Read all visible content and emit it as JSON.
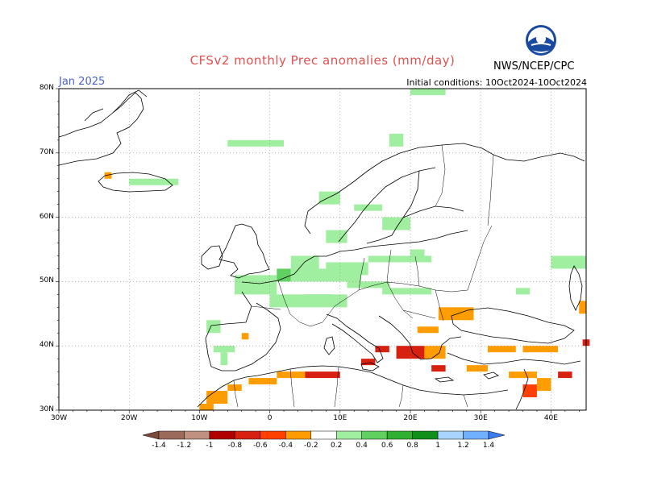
{
  "title": "CFSv2 monthly Prec anomalies (mm/day)",
  "month": "Jan 2025",
  "initial_conditions": "Initial conditions: 10Oct2024-10Oct2024",
  "agency": "NWS/NCEP/CPC",
  "logo_text": "NOAA",
  "latitude_labels": [
    "80N",
    "70N",
    "60N",
    "50N",
    "40N",
    "30N"
  ],
  "longitude_labels": [
    "30W",
    "20W",
    "10W",
    "0",
    "10E",
    "20E",
    "30E",
    "40E"
  ],
  "colorbar": {
    "labels": [
      "-1.4",
      "-1.2",
      "-1",
      "-0.8",
      "-0.6",
      "-0.4",
      "-0.2",
      "0.2",
      "0.4",
      "0.6",
      "0.8",
      "1",
      "1.2",
      "1.4"
    ],
    "colors": [
      "#7a4a3a",
      "#9c6a5a",
      "#c09080",
      "#b00000",
      "#d82010",
      "#ff4000",
      "#ff9d00",
      "#ffffff",
      "#a0eea0",
      "#60d060",
      "#30b030",
      "#10901a",
      "#a8d4ff",
      "#70b0ff",
      "#3c7cf0"
    ]
  },
  "chart_data": {
    "type": "heatmap",
    "projection": "lat-lon",
    "lon_range": [
      -30,
      45
    ],
    "lat_range": [
      30,
      80
    ],
    "colors": {
      "light_green": "#a0eea0",
      "green": "#60d060",
      "orange": "#ff9d00",
      "red_orange": "#ff4000",
      "red": "#d82010",
      "dark_red": "#b00000"
    },
    "cells": [
      [
        -6,
        71,
        8,
        1,
        "light_green"
      ],
      [
        17,
        71,
        2,
        2,
        "light_green"
      ],
      [
        20,
        79,
        5,
        1,
        "light_green"
      ],
      [
        -20,
        65,
        7,
        1,
        "light_green"
      ],
      [
        -23.5,
        66,
        1,
        1,
        "orange"
      ],
      [
        7,
        62,
        3,
        2,
        "light_green"
      ],
      [
        12,
        61,
        4,
        1,
        "light_green"
      ],
      [
        16,
        58,
        4,
        2,
        "light_green"
      ],
      [
        8,
        56,
        3,
        2,
        "light_green"
      ],
      [
        20,
        54,
        2,
        1,
        "light_green"
      ],
      [
        3,
        52,
        4,
        2,
        "light_green"
      ],
      [
        8,
        51,
        6,
        2,
        "light_green"
      ],
      [
        14,
        53,
        9,
        1,
        "light_green"
      ],
      [
        -5,
        48,
        6,
        3,
        "light_green"
      ],
      [
        1,
        50,
        2,
        2,
        "green"
      ],
      [
        3,
        50,
        10,
        2,
        "light_green"
      ],
      [
        5,
        47,
        4,
        1,
        "green"
      ],
      [
        0,
        46,
        11,
        2,
        "light_green"
      ],
      [
        11,
        49,
        6,
        1,
        "light_green"
      ],
      [
        16,
        48,
        7,
        1,
        "light_green"
      ],
      [
        -9,
        42,
        2,
        2,
        "light_green"
      ],
      [
        -8,
        39,
        3,
        1,
        "light_green"
      ],
      [
        -7,
        37,
        1,
        2,
        "light_green"
      ],
      [
        -4,
        41,
        1,
        1,
        "orange"
      ],
      [
        35,
        48,
        2,
        1,
        "light_green"
      ],
      [
        40,
        52,
        5,
        2,
        "light_green"
      ],
      [
        24,
        44,
        5,
        2,
        "orange"
      ],
      [
        21,
        42,
        3,
        1,
        "orange"
      ],
      [
        15,
        39,
        2,
        1,
        "red"
      ],
      [
        18,
        38,
        4,
        2,
        "red"
      ],
      [
        22,
        38,
        3,
        2,
        "orange"
      ],
      [
        23,
        36,
        2,
        1,
        "red"
      ],
      [
        31,
        39,
        4,
        1,
        "orange"
      ],
      [
        36,
        39,
        5,
        1,
        "orange"
      ],
      [
        28,
        36,
        3,
        1,
        "orange"
      ],
      [
        34,
        35,
        4,
        1,
        "orange"
      ],
      [
        41,
        35,
        2,
        1,
        "red"
      ],
      [
        38,
        33,
        2,
        2,
        "orange"
      ],
      [
        36,
        32,
        2,
        2,
        "red_orange"
      ],
      [
        5,
        35,
        5,
        1,
        "red"
      ],
      [
        1,
        35,
        4,
        1,
        "orange"
      ],
      [
        -3,
        34,
        4,
        1,
        "orange"
      ],
      [
        -6,
        33,
        2,
        1,
        "orange"
      ],
      [
        -9,
        31,
        3,
        2,
        "orange"
      ],
      [
        -10,
        30,
        2,
        1,
        "orange"
      ],
      [
        13,
        37,
        2,
        1,
        "red"
      ],
      [
        44.5,
        40,
        1,
        1,
        "red"
      ],
      [
        44,
        45,
        1,
        2,
        "orange"
      ]
    ]
  }
}
